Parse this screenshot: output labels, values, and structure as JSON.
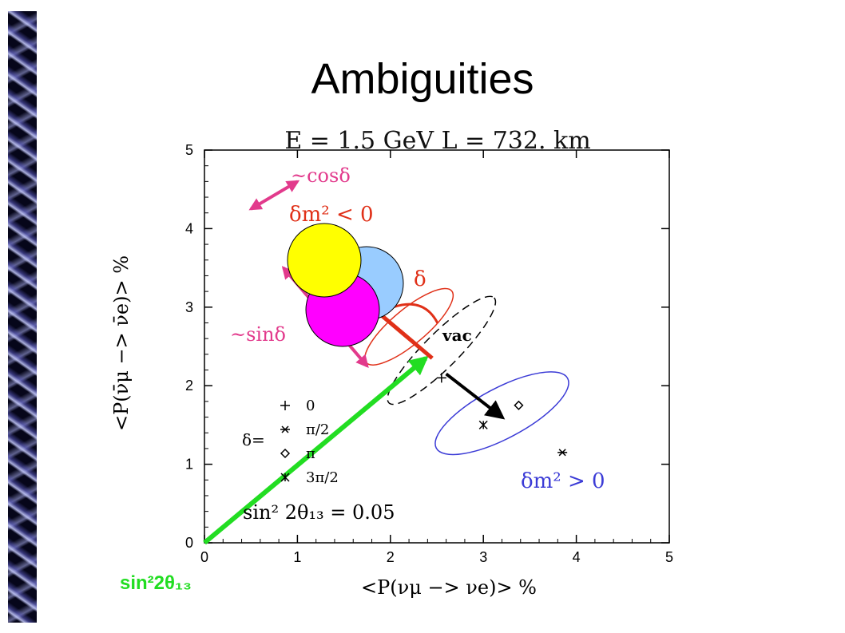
{
  "slide": {
    "title": "Ambiguities"
  },
  "chart_data": {
    "type": "scatter",
    "title": "E  =  1.5 GeV      L  =  732. km",
    "xlabel": "<P(νμ −> νe)> %",
    "ylabel": "<P(ν̄μ −> ν̄e)> %",
    "xlim": [
      0,
      5
    ],
    "ylim": [
      0,
      5
    ],
    "xticks": [
      "0",
      "1",
      "2",
      "3",
      "4",
      "5"
    ],
    "yticks": [
      "0",
      "1",
      "2",
      "3",
      "4",
      "5"
    ],
    "grid": false,
    "legend": {
      "placement": "center-left",
      "prefix": "δ=",
      "entries": [
        {
          "marker": "plus",
          "label": "0"
        },
        {
          "marker": "star",
          "label": "π/2"
        },
        {
          "marker": "diamond",
          "label": "π"
        },
        {
          "marker": "cross",
          "label": "3π/2"
        }
      ]
    },
    "parameter_text": "sin² 2θ₁₃  =  0.05",
    "series": [
      {
        "name": "δm² > 0",
        "color": "#3b3bd6",
        "ellipse": {
          "center": [
            3.2,
            1.65
          ],
          "semi_axes": [
            0.8,
            0.32
          ],
          "angle_deg": -28
        },
        "points": [
          {
            "delta": "0",
            "marker": "plus",
            "x": 2.55,
            "y": 2.1
          },
          {
            "delta": "π/2",
            "marker": "star",
            "x": 3.85,
            "y": 1.15
          },
          {
            "delta": "π",
            "marker": "diamond",
            "x": 3.38,
            "y": 1.75
          },
          {
            "delta": "3π/2",
            "marker": "cross",
            "x": 3.0,
            "y": 1.5
          }
        ]
      },
      {
        "name": "δm² < 0",
        "color": "#e03018",
        "ellipse": {
          "center": [
            2.2,
            2.75
          ],
          "semi_axes": [
            0.6,
            0.22
          ],
          "angle_deg": -40
        }
      },
      {
        "name": "vac",
        "color": "#000000",
        "ellipse": {
          "center": [
            2.55,
            2.45
          ],
          "semi_axes": [
            0.8,
            0.22
          ],
          "angle_deg": -45
        }
      }
    ],
    "annotations": [
      {
        "text": "~cosδ",
        "color": "#e23a8c"
      },
      {
        "text": "δm²  <  0",
        "color": "#e03018"
      },
      {
        "text": "δ",
        "color": "#e03018"
      },
      {
        "text": "~sinδ",
        "color": "#e23a8c"
      },
      {
        "text": "vac",
        "color": "#000000"
      },
      {
        "text": "δm²  >  0",
        "color": "#3b3bd6"
      },
      {
        "text": "sin²2θ₁₃",
        "color": "#22dd22"
      }
    ],
    "arrows": [
      {
        "kind": "green",
        "from": [
          0,
          0
        ],
        "to": [
          2.38,
          2.35
        ],
        "color": "#22dd22"
      },
      {
        "kind": "black",
        "from": [
          2.6,
          2.15
        ],
        "to": [
          3.2,
          1.6
        ],
        "color": "#000000"
      },
      {
        "kind": "cos",
        "from": [
          0.5,
          4.25
        ],
        "to": [
          1.0,
          4.6
        ],
        "color": "#e23a8c"
      },
      {
        "kind": "sin",
        "from": [
          0.85,
          3.5
        ],
        "to": [
          1.75,
          2.25
        ],
        "color": "#e23a8c"
      }
    ],
    "overlay_circles": [
      {
        "color": "#99ccff"
      },
      {
        "color": "#ffff00"
      },
      {
        "color": "#ff00ff"
      }
    ]
  }
}
